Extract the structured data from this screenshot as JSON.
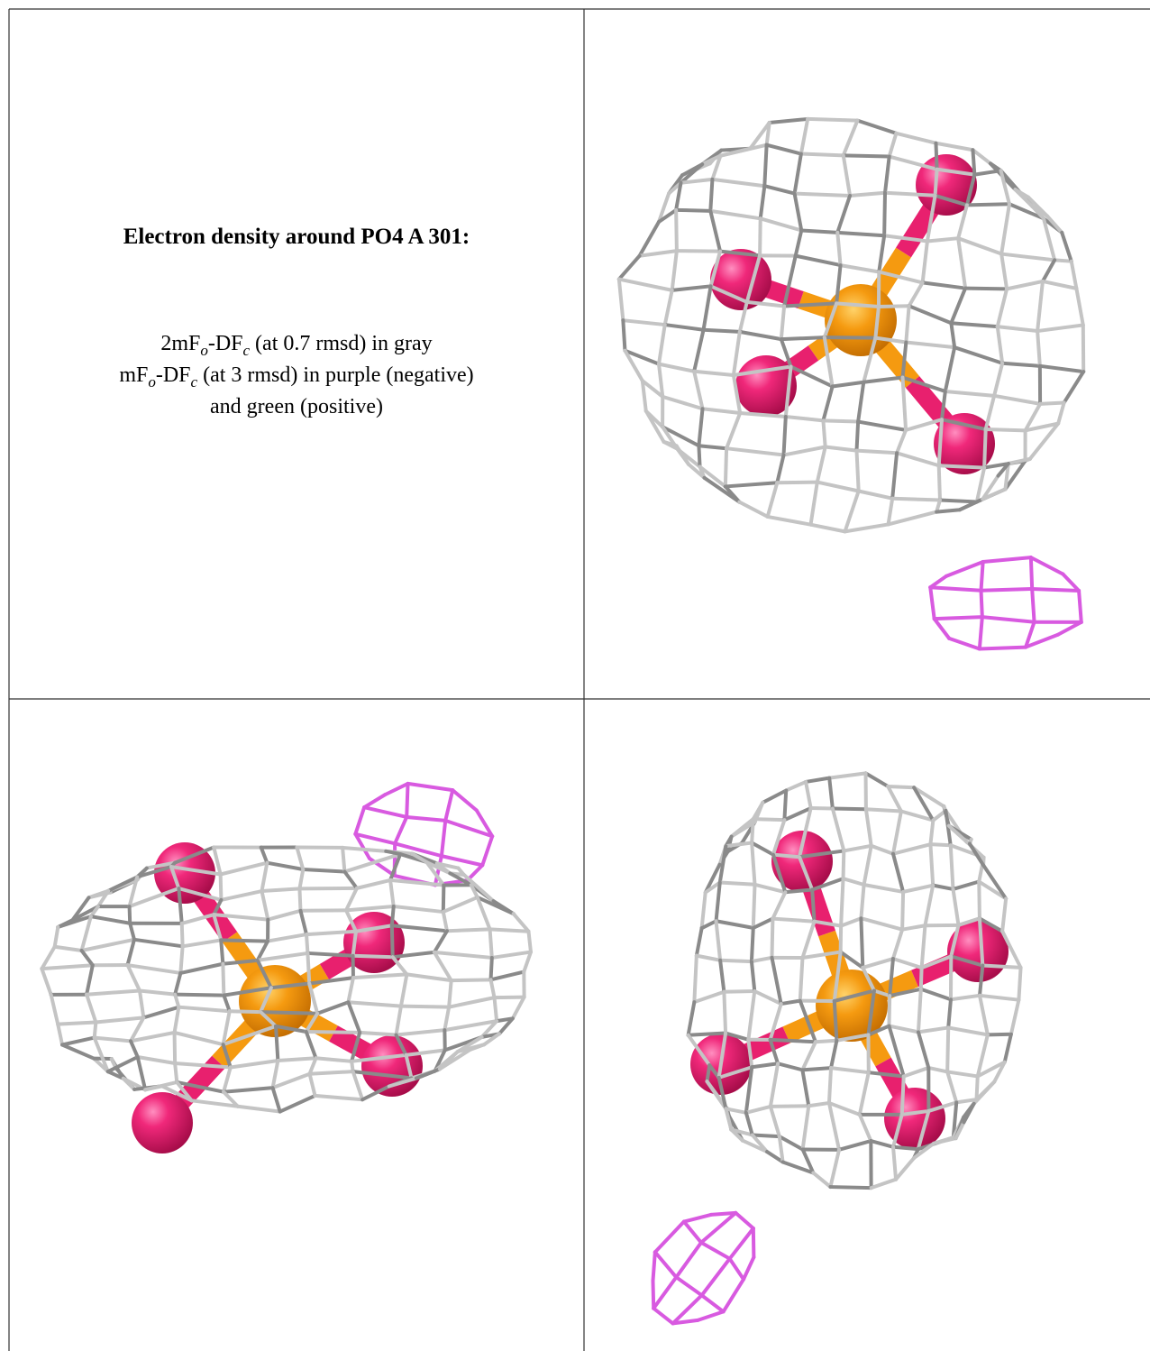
{
  "caption": {
    "title": "Electron density around PO4 A 301:",
    "lines": [
      [
        "2mF",
        "o",
        "-DF",
        "c",
        " (at 0.7 rmsd) in gray"
      ],
      [
        "mF",
        "o",
        "-DF",
        "c",
        " (at 3 rmsd) in purple (negative)"
      ],
      [
        "and green (positive)"
      ]
    ]
  }
}
